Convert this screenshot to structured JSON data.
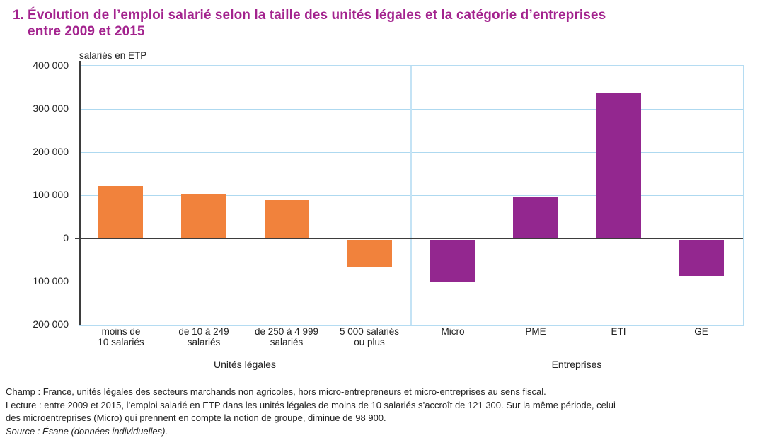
{
  "header": {
    "number": "1.",
    "title_line1": "Évolution de l’emploi salarié selon la taille des unités légales et la catégorie d’entreprises",
    "title_line2": "entre 2009 et 2015"
  },
  "colors": {
    "title_magenta": "#A3238E",
    "bar_orange": "#F1823C",
    "bar_purple": "#93278F",
    "grid_blue": "#AED9F0",
    "axis_dark": "#3D3D3D"
  },
  "chart_data": {
    "type": "bar",
    "title": "Évolution de l’emploi salarié selon la taille des unités légales et la catégorie d’entreprises entre 2009 et 2015",
    "ylabel": "salariés en ETP",
    "xlabel": "",
    "ylim": [
      -200000,
      400000
    ],
    "ytick_interval": 100000,
    "ytick_labels": [
      "400 000",
      "300 000",
      "200 000",
      "100 000",
      "0",
      "– 100 000",
      "– 200 000"
    ],
    "grid": "horizontal light-blue gridlines, vertical divider between panels",
    "legend": "none",
    "groups": [
      {
        "name": "Unités légales",
        "color": "#F1823C",
        "categories": [
          "moins de 10 salariés",
          "de 10 à 249 salariés",
          "de 250 à 4 999 salariés",
          "5 000 salariés ou plus"
        ],
        "category_label_lines": [
          [
            "moins de",
            "10 salariés"
          ],
          [
            "de 10 à 249",
            "salariés"
          ],
          [
            "de 250 à 4 999",
            "salariés"
          ],
          [
            "5 000 salariés",
            "ou plus"
          ]
        ],
        "values": [
          121300,
          103000,
          90000,
          -62000
        ]
      },
      {
        "name": "Entreprises",
        "color": "#93278F",
        "categories": [
          "Micro",
          "PME",
          "ETI",
          "GE"
        ],
        "category_label_lines": [
          [
            "Micro"
          ],
          [
            "PME"
          ],
          [
            "ETI"
          ],
          [
            "GE"
          ]
        ],
        "values": [
          -98900,
          95000,
          337000,
          -84000
        ]
      }
    ]
  },
  "notes": {
    "champ": "Champ : France, unités légales des secteurs marchands non agricoles, hors micro-entrepreneurs et micro-entreprises au sens fiscal.",
    "lecture_line1": "Lecture : entre 2009 et 2015, l’emploi salarié en ETP dans les unités légales de moins de 10 salariés s’accroît de 121 300. Sur la même période, celui",
    "lecture_line2": "des microentreprises (Micro) qui prennent en compte la notion de groupe, diminue de 98 900.",
    "source": "Source : Ésane (données individuelles)."
  }
}
